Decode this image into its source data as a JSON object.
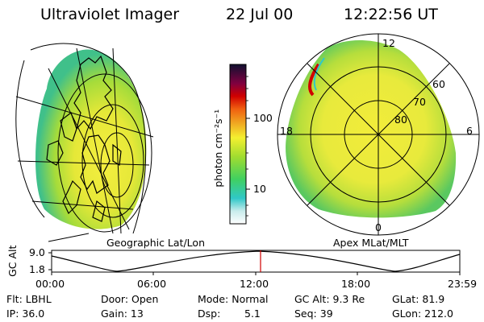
{
  "header": {
    "title": "Ultraviolet Imager",
    "date": "22 Jul 00",
    "time": "12:22:56 UT"
  },
  "left_panel": {
    "caption": "Geographic Lat/Lon"
  },
  "right_panel": {
    "caption": "Apex MLat/MLT",
    "mlt_labels": {
      "top": "12",
      "left": "18",
      "right": "6",
      "bottom": "0"
    },
    "lat_labels": [
      "60",
      "70",
      "80"
    ]
  },
  "colorbar": {
    "unit_label": "photon cm⁻²s⁻¹",
    "ticks": [
      "100",
      "10"
    ],
    "scale": "log"
  },
  "timeline": {
    "ylabel": "GC Alt",
    "y_ticks": [
      "9.0",
      "1.8"
    ],
    "x_ticks": [
      "00:00",
      "06:00",
      "12:00",
      "18:00",
      "23:59"
    ],
    "current_time": "12:22:56"
  },
  "status": {
    "flt": "Flt: LBHL",
    "ip": "IP: 36.0",
    "door": "Door: Open",
    "gain": "Gain: 13",
    "mode": "Mode: Normal",
    "dsp_label": "Dsp:",
    "dsp_value": "5.1",
    "gc_alt": "GC Alt: 9.3 Re",
    "seq": "Seq: 39",
    "glat": "GLat: 81.9",
    "glon": "GLon: 212.0"
  },
  "colors": {
    "marker": "#d00000",
    "yellow": "#f2ec3a",
    "green": "#7dd23a",
    "cyan": "#30c8c8"
  }
}
